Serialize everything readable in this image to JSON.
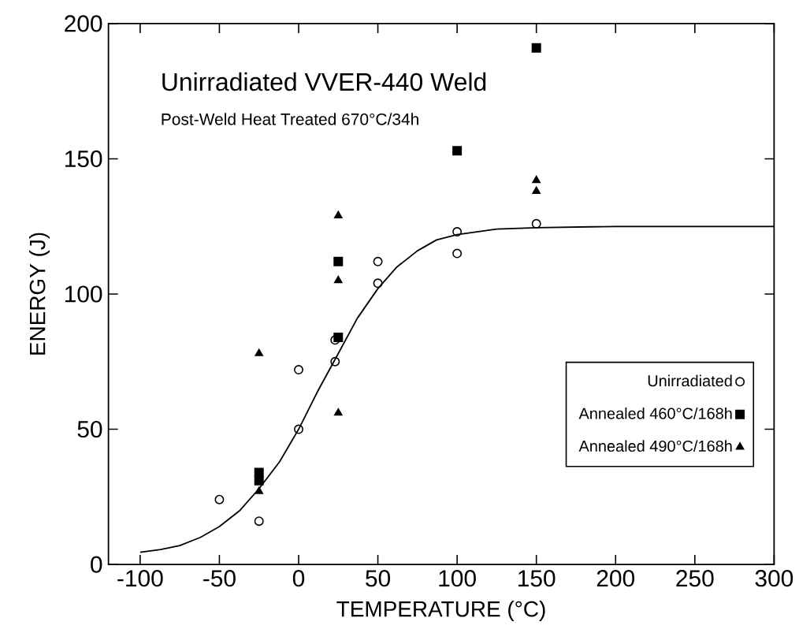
{
  "chart_data": {
    "type": "scatter",
    "title": "Unirradiated VVER-440 Weld",
    "subtitle": "Post-Weld Heat Treated 670°C/34h",
    "xlabel": "TEMPERATURE   (°C)",
    "ylabel": "ENERGY (J)",
    "xlim": [
      -120,
      300
    ],
    "xticks": [
      -100,
      -50,
      0,
      50,
      100,
      150,
      200,
      250,
      300
    ],
    "ylim": [
      0,
      200
    ],
    "yticks": [
      0,
      50,
      100,
      150,
      200
    ],
    "grid": false,
    "legend": "bottom right",
    "series": [
      {
        "name": "Unirradiated",
        "color": "#000000",
        "marker": "circle",
        "x": [
          -50,
          -25,
          0,
          0,
          23,
          23,
          50,
          50,
          100,
          100,
          150
        ],
        "values": [
          24,
          16,
          50,
          72,
          75,
          83,
          104,
          112,
          115,
          123,
          126
        ]
      },
      {
        "name": "Annealed 460°C/168h",
        "color": "#000000",
        "marker": "square",
        "x": [
          -25,
          -25,
          25,
          25,
          100,
          150
        ],
        "values": [
          31,
          34,
          84,
          112,
          153,
          191
        ]
      },
      {
        "name": "Annealed 490°C/168h",
        "color": "#000000",
        "marker": "triangle",
        "x": [
          -25,
          -25,
          25,
          25,
          25,
          150,
          150
        ],
        "values": [
          27,
          78,
          56,
          105,
          129,
          138,
          142
        ]
      },
      {
        "type": "line",
        "color": "#000000",
        "marker": "none",
        "line_style": "solid",
        "x": [
          -100,
          -87,
          -75,
          -62,
          -50,
          -37,
          -25,
          -12,
          0,
          12,
          25,
          37,
          50,
          62,
          75,
          87,
          100,
          125,
          150,
          200,
          300
        ],
        "values": [
          4.5,
          5.5,
          7,
          10,
          14,
          20,
          28,
          38,
          50,
          64,
          78,
          91,
          102,
          110,
          116,
          120,
          122,
          124,
          124.5,
          125,
          125
        ]
      }
    ]
  }
}
